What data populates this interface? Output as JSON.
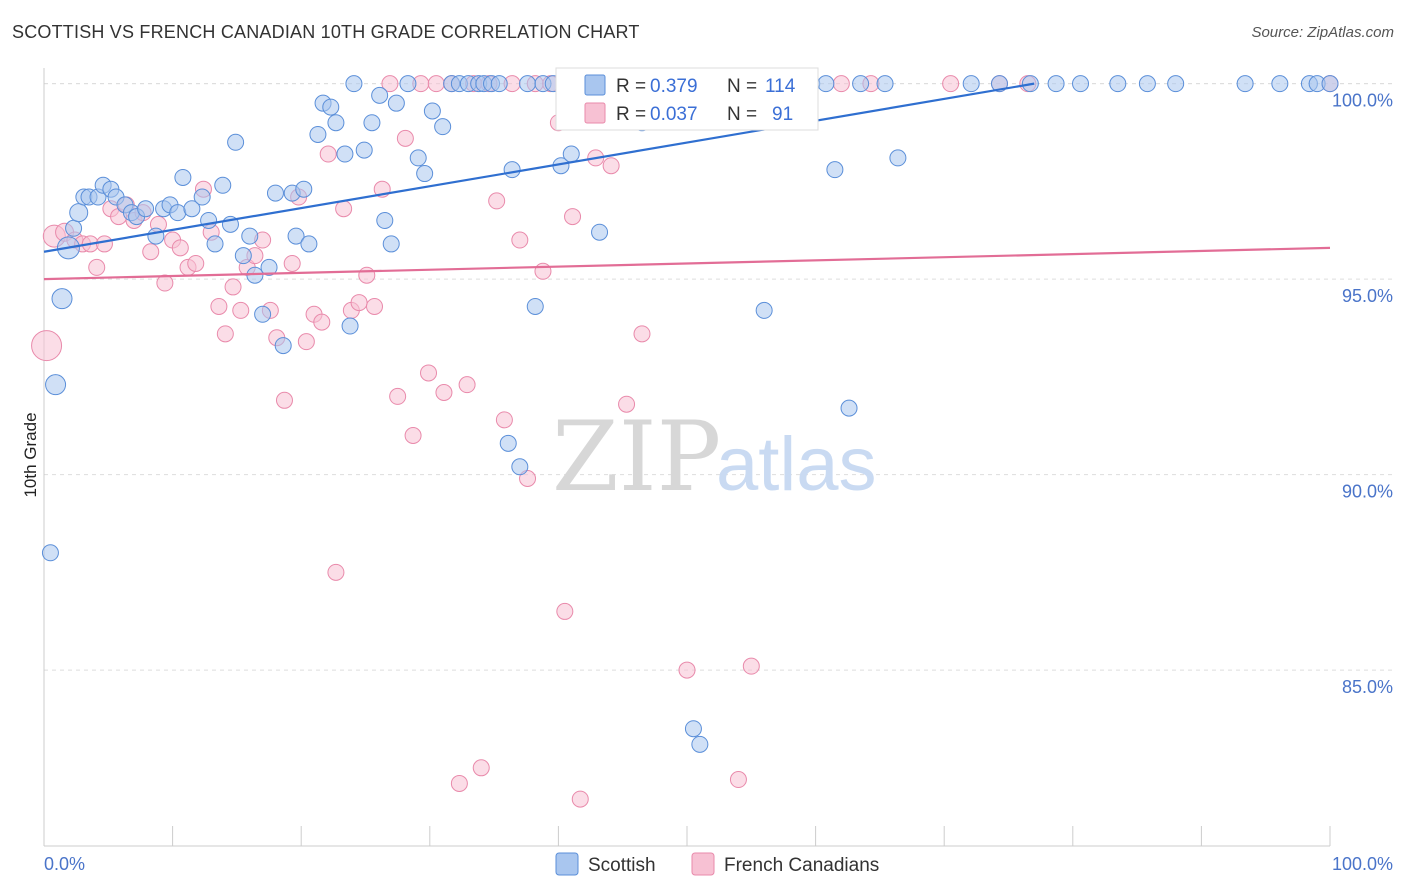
{
  "title": "SCOTTISH VS FRENCH CANADIAN 10TH GRADE CORRELATION CHART",
  "source": "Source: ZipAtlas.com",
  "watermark": {
    "zip": "ZIP",
    "atlas": "atlas"
  },
  "legend": {
    "r_label": "R =",
    "n_label": "N =",
    "series": [
      {
        "r": "0.379",
        "n": "114"
      },
      {
        "r": "0.037",
        "n": "91"
      }
    ]
  },
  "bottom_legend": [
    "Scottish",
    "French Canadians"
  ],
  "colors": {
    "scottish_fill": "#a9c6ef",
    "scottish_stroke": "#5b8fd9",
    "scottish_line": "#2f6fd0",
    "french_fill": "#f7c1d3",
    "french_stroke": "#e98aab",
    "french_line": "#e26d96",
    "tick_text": "#4a74c9",
    "grid": "#dddddd"
  },
  "chart_data": {
    "type": "scatter",
    "title": "SCOTTISH VS FRENCH CANADIAN 10TH GRADE CORRELATION CHART",
    "xlabel": "",
    "ylabel": "10th Grade",
    "xlim": [
      0,
      100
    ],
    "ylim": [
      80.5,
      100.4
    ],
    "x_tick_labels": [
      "0.0%",
      "100.0%"
    ],
    "y_ticks": [
      85,
      90,
      95,
      100
    ],
    "y_tick_labels": [
      "85.0%",
      "90.0%",
      "95.0%",
      "100.0%"
    ],
    "grid": true,
    "legend_position": "top-center",
    "series": [
      {
        "name": "Scottish",
        "r": 0.379,
        "n": 114,
        "trend": {
          "x": [
            0,
            77
          ],
          "y": [
            95.7,
            100.0
          ]
        },
        "points": [
          [
            0.5,
            88.0,
            16
          ],
          [
            0.9,
            92.3,
            20
          ],
          [
            1.4,
            94.5,
            20
          ],
          [
            1.9,
            95.8,
            22
          ],
          [
            2.3,
            96.3,
            16
          ],
          [
            2.7,
            96.7,
            18
          ],
          [
            3.1,
            97.1,
            16
          ],
          [
            3.5,
            97.1,
            16
          ],
          [
            4.2,
            97.1,
            16
          ],
          [
            4.6,
            97.4,
            16
          ],
          [
            5.2,
            97.3,
            16
          ],
          [
            5.6,
            97.1,
            16
          ],
          [
            6.3,
            96.9,
            16
          ],
          [
            6.8,
            96.7,
            16
          ],
          [
            7.2,
            96.6,
            16
          ],
          [
            7.9,
            96.8,
            16
          ],
          [
            8.7,
            96.1,
            16
          ],
          [
            9.3,
            96.8,
            16
          ],
          [
            9.8,
            96.9,
            16
          ],
          [
            10.4,
            96.7,
            16
          ],
          [
            10.8,
            97.6,
            16
          ],
          [
            11.5,
            96.8,
            16
          ],
          [
            12.3,
            97.1,
            16
          ],
          [
            12.8,
            96.5,
            16
          ],
          [
            13.3,
            95.9,
            16
          ],
          [
            13.9,
            97.4,
            16
          ],
          [
            14.5,
            96.4,
            16
          ],
          [
            14.9,
            98.5,
            16
          ],
          [
            15.5,
            95.6,
            16
          ],
          [
            16.0,
            96.1,
            16
          ],
          [
            16.4,
            95.1,
            16
          ],
          [
            17.0,
            94.1,
            16
          ],
          [
            17.5,
            95.3,
            16
          ],
          [
            18.0,
            97.2,
            16
          ],
          [
            18.6,
            93.3,
            16
          ],
          [
            19.3,
            97.2,
            16
          ],
          [
            19.6,
            96.1,
            16
          ],
          [
            20.2,
            97.3,
            16
          ],
          [
            20.6,
            95.9,
            16
          ],
          [
            21.3,
            98.7,
            16
          ],
          [
            21.7,
            99.5,
            16
          ],
          [
            22.3,
            99.4,
            16
          ],
          [
            22.7,
            99.0,
            16
          ],
          [
            23.4,
            98.2,
            16
          ],
          [
            23.8,
            93.8,
            16
          ],
          [
            24.1,
            100.0,
            16
          ],
          [
            24.9,
            98.3,
            16
          ],
          [
            25.5,
            99.0,
            16
          ],
          [
            26.1,
            99.7,
            16
          ],
          [
            26.5,
            96.5,
            16
          ],
          [
            27.0,
            95.9,
            16
          ],
          [
            27.4,
            99.5,
            16
          ],
          [
            28.3,
            100.0,
            16
          ],
          [
            29.1,
            98.1,
            16
          ],
          [
            29.6,
            97.7,
            16
          ],
          [
            30.2,
            99.3,
            16
          ],
          [
            31.0,
            98.9,
            16
          ],
          [
            31.7,
            100.0,
            16
          ],
          [
            32.3,
            100.0,
            16
          ],
          [
            33.0,
            100.0,
            16
          ],
          [
            33.8,
            100.0,
            16
          ],
          [
            34.2,
            100.0,
            16
          ],
          [
            34.8,
            100.0,
            16
          ],
          [
            35.4,
            100.0,
            16
          ],
          [
            36.1,
            90.8,
            16
          ],
          [
            36.4,
            97.8,
            16
          ],
          [
            37.0,
            90.2,
            16
          ],
          [
            37.6,
            100.0,
            16
          ],
          [
            38.2,
            94.3,
            16
          ],
          [
            38.8,
            100.0,
            16
          ],
          [
            39.6,
            100.0,
            16
          ],
          [
            40.2,
            97.9,
            16
          ],
          [
            41.0,
            98.2,
            16
          ],
          [
            41.8,
            100.0,
            16
          ],
          [
            42.5,
            100.0,
            16
          ],
          [
            43.2,
            96.2,
            16
          ],
          [
            43.9,
            100.0,
            16
          ],
          [
            44.6,
            100.0,
            16
          ],
          [
            45.3,
            100.0,
            16
          ],
          [
            46.0,
            100.0,
            16
          ],
          [
            46.5,
            99.0,
            16
          ],
          [
            47.4,
            100.0,
            16
          ],
          [
            48.2,
            100.0,
            16
          ],
          [
            49.0,
            100.0,
            16
          ],
          [
            49.7,
            100.0,
            16
          ],
          [
            50.5,
            83.5,
            16
          ],
          [
            51.0,
            83.1,
            16
          ],
          [
            51.8,
            100.0,
            16
          ],
          [
            52.6,
            100.0,
            16
          ],
          [
            53.4,
            100.0,
            16
          ],
          [
            54.1,
            100.0,
            16
          ],
          [
            55.0,
            100.0,
            16
          ],
          [
            56.0,
            94.2,
            16
          ],
          [
            56.7,
            100.0,
            16
          ],
          [
            57.4,
            100.0,
            16
          ],
          [
            58.6,
            100.0,
            16
          ],
          [
            59.7,
            100.0,
            16
          ],
          [
            60.8,
            100.0,
            16
          ],
          [
            61.5,
            97.8,
            16
          ],
          [
            62.6,
            91.7,
            16
          ],
          [
            63.5,
            100.0,
            16
          ],
          [
            65.4,
            100.0,
            16
          ],
          [
            66.4,
            98.1,
            16
          ],
          [
            72.1,
            100.0,
            16
          ],
          [
            74.3,
            100.0,
            16
          ],
          [
            76.7,
            100.0,
            16
          ],
          [
            78.7,
            100.0,
            16
          ],
          [
            80.6,
            100.0,
            16
          ],
          [
            83.5,
            100.0,
            16
          ],
          [
            85.8,
            100.0,
            16
          ],
          [
            88.0,
            100.0,
            16
          ],
          [
            93.4,
            100.0,
            16
          ],
          [
            96.1,
            100.0,
            16
          ],
          [
            98.4,
            100.0,
            16
          ],
          [
            99.0,
            100.0,
            16
          ],
          [
            100.0,
            100.0,
            16
          ]
        ]
      },
      {
        "name": "French Canadians",
        "r": 0.037,
        "n": 91,
        "trend": {
          "x": [
            0,
            100
          ],
          "y": [
            95.0,
            95.8
          ]
        },
        "points": [
          [
            0.2,
            93.3,
            30
          ],
          [
            0.8,
            96.1,
            22
          ],
          [
            1.6,
            96.2,
            18
          ],
          [
            2.4,
            96.0,
            16
          ],
          [
            3.0,
            95.9,
            16
          ],
          [
            3.6,
            95.9,
            16
          ],
          [
            4.1,
            95.3,
            16
          ],
          [
            4.7,
            95.9,
            16
          ],
          [
            5.2,
            96.8,
            16
          ],
          [
            5.8,
            96.6,
            16
          ],
          [
            6.4,
            96.9,
            16
          ],
          [
            7.0,
            96.5,
            16
          ],
          [
            7.7,
            96.7,
            16
          ],
          [
            8.3,
            95.7,
            16
          ],
          [
            8.9,
            96.4,
            16
          ],
          [
            9.4,
            94.9,
            16
          ],
          [
            10.0,
            96.0,
            16
          ],
          [
            10.6,
            95.8,
            16
          ],
          [
            11.2,
            95.3,
            16
          ],
          [
            11.8,
            95.4,
            16
          ],
          [
            12.4,
            97.3,
            16
          ],
          [
            13.0,
            96.2,
            16
          ],
          [
            13.6,
            94.3,
            16
          ],
          [
            14.1,
            93.6,
            16
          ],
          [
            14.7,
            94.8,
            16
          ],
          [
            15.3,
            94.2,
            16
          ],
          [
            15.8,
            95.3,
            16
          ],
          [
            16.4,
            95.6,
            16
          ],
          [
            17.0,
            96.0,
            16
          ],
          [
            17.6,
            94.2,
            16
          ],
          [
            18.1,
            93.5,
            16
          ],
          [
            18.7,
            91.9,
            16
          ],
          [
            19.3,
            95.4,
            16
          ],
          [
            19.8,
            97.1,
            16
          ],
          [
            20.4,
            93.4,
            16
          ],
          [
            21.0,
            94.1,
            16
          ],
          [
            21.6,
            93.9,
            16
          ],
          [
            22.1,
            98.2,
            16
          ],
          [
            22.7,
            87.5,
            16
          ],
          [
            23.3,
            96.8,
            16
          ],
          [
            23.9,
            94.2,
            16
          ],
          [
            24.5,
            94.4,
            16
          ],
          [
            25.1,
            95.1,
            16
          ],
          [
            25.7,
            94.3,
            16
          ],
          [
            26.3,
            97.3,
            16
          ],
          [
            26.9,
            100.0,
            16
          ],
          [
            27.5,
            92.0,
            16
          ],
          [
            28.1,
            98.6,
            16
          ],
          [
            28.7,
            91.0,
            16
          ],
          [
            29.3,
            100.0,
            16
          ],
          [
            29.9,
            92.6,
            16
          ],
          [
            30.5,
            100.0,
            16
          ],
          [
            31.1,
            92.1,
            16
          ],
          [
            31.7,
            100.0,
            16
          ],
          [
            32.3,
            82.1,
            16
          ],
          [
            32.9,
            92.3,
            16
          ],
          [
            33.4,
            100.0,
            16
          ],
          [
            34.0,
            82.5,
            16
          ],
          [
            34.6,
            100.0,
            16
          ],
          [
            35.2,
            97.0,
            16
          ],
          [
            35.8,
            91.4,
            16
          ],
          [
            36.4,
            100.0,
            16
          ],
          [
            37.0,
            96.0,
            16
          ],
          [
            37.6,
            89.9,
            16
          ],
          [
            38.2,
            100.0,
            16
          ],
          [
            38.8,
            95.2,
            16
          ],
          [
            39.4,
            100.0,
            16
          ],
          [
            40.0,
            99.0,
            16
          ],
          [
            40.5,
            86.5,
            16
          ],
          [
            41.1,
            96.6,
            16
          ],
          [
            41.7,
            81.7,
            16
          ],
          [
            42.3,
            100.0,
            16
          ],
          [
            42.9,
            98.1,
            16
          ],
          [
            43.5,
            100.0,
            16
          ],
          [
            44.1,
            97.9,
            16
          ],
          [
            44.7,
            100.0,
            16
          ],
          [
            45.3,
            91.8,
            16
          ],
          [
            45.9,
            100.0,
            16
          ],
          [
            46.5,
            93.6,
            16
          ],
          [
            49.0,
            100.0,
            16
          ],
          [
            50.0,
            85.0,
            16
          ],
          [
            53.0,
            100.0,
            16
          ],
          [
            54.0,
            82.2,
            16
          ],
          [
            55.0,
            85.1,
            16
          ],
          [
            58.0,
            100.0,
            16
          ],
          [
            62.0,
            100.0,
            16
          ],
          [
            64.3,
            100.0,
            16
          ],
          [
            70.5,
            100.0,
            16
          ],
          [
            74.3,
            100.0,
            16
          ],
          [
            76.5,
            100.0,
            16
          ],
          [
            100.0,
            100.0,
            16
          ]
        ]
      }
    ]
  }
}
